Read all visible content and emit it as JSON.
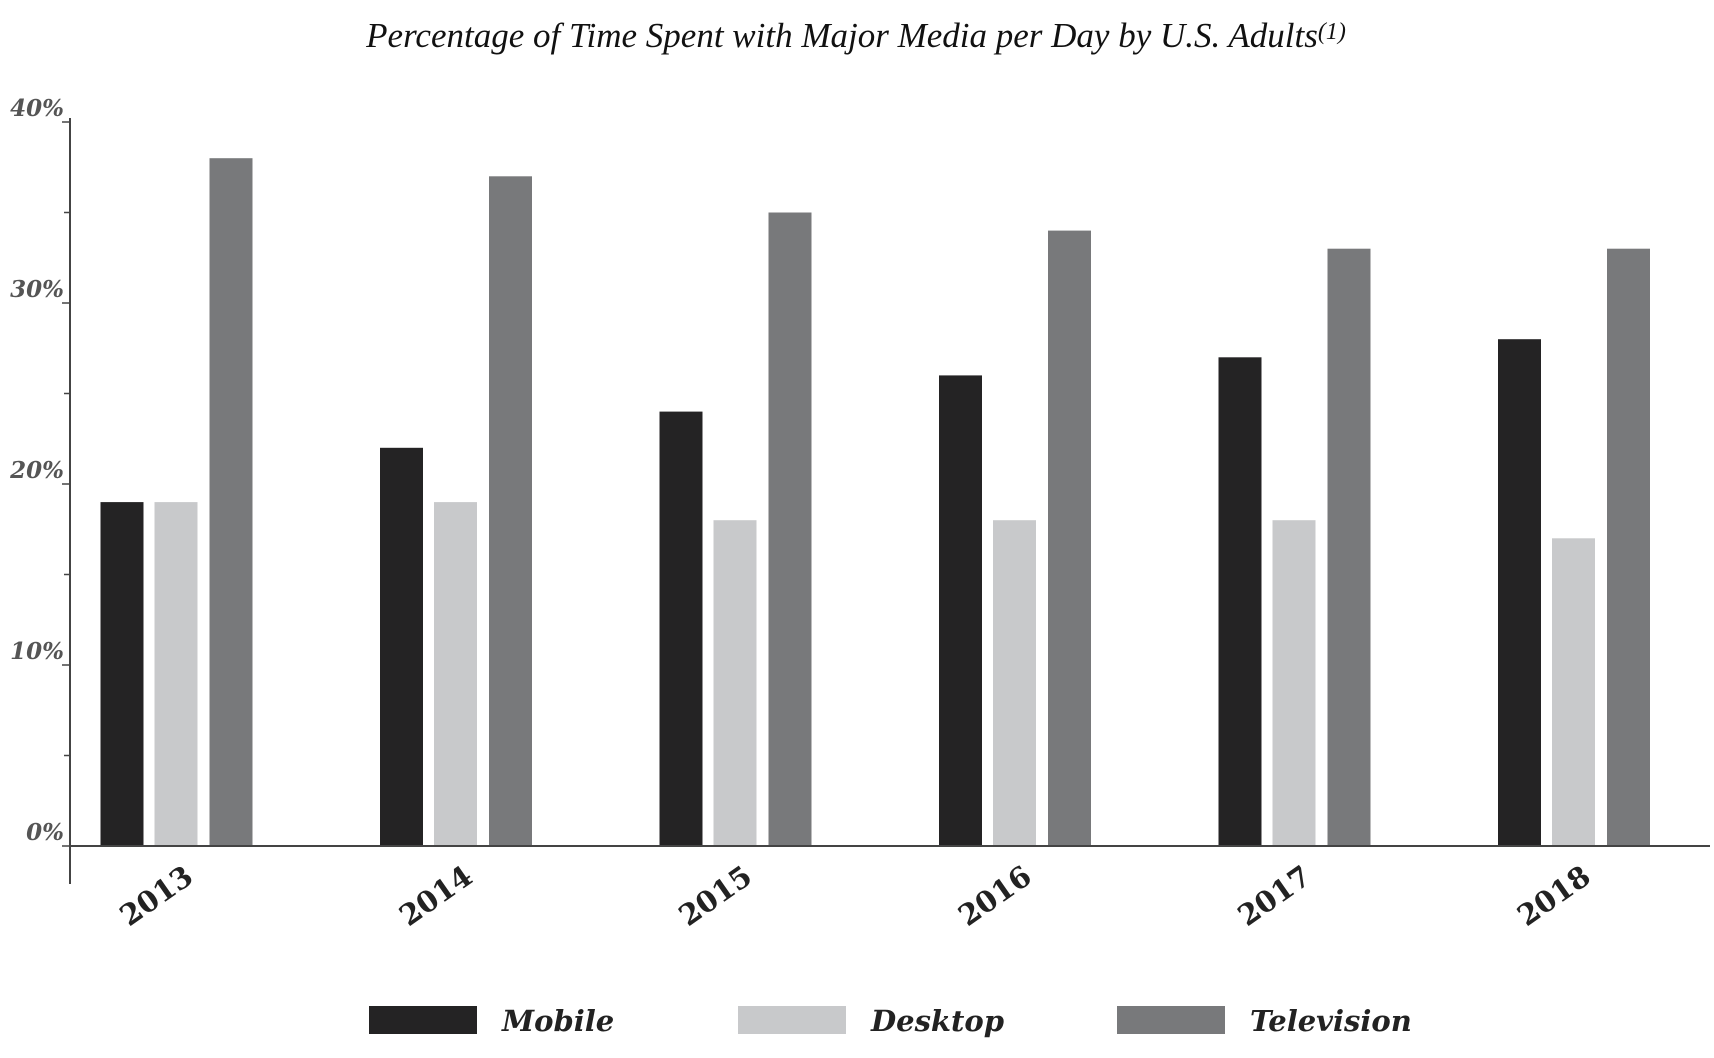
{
  "chart_data": {
    "type": "bar",
    "title": "Percentage of Time Spent with Major Media per Day by U.S. Adults",
    "title_footnote": "(1)",
    "xlabel": "",
    "ylabel": "",
    "categories": [
      "2013",
      "2014",
      "2015",
      "2016",
      "2017",
      "2018"
    ],
    "series": [
      {
        "name": "Mobile",
        "color": "#242324",
        "values": [
          19,
          22,
          24,
          26,
          27,
          28
        ]
      },
      {
        "name": "Desktop",
        "color": "#c8c9cb",
        "values": [
          19,
          19,
          18,
          18,
          18,
          17
        ]
      },
      {
        "name": "Television",
        "color": "#78797b",
        "values": [
          38,
          37,
          35,
          34,
          33,
          33
        ]
      }
    ],
    "ylim": [
      0,
      40
    ],
    "y_major_ticks": [
      0,
      10,
      20,
      30,
      40
    ],
    "y_tick_labels": [
      "0%",
      "10%",
      "20%",
      "30%",
      "40%"
    ],
    "y_minor_step": 5,
    "grid": false,
    "legend_position": "bottom-center"
  }
}
